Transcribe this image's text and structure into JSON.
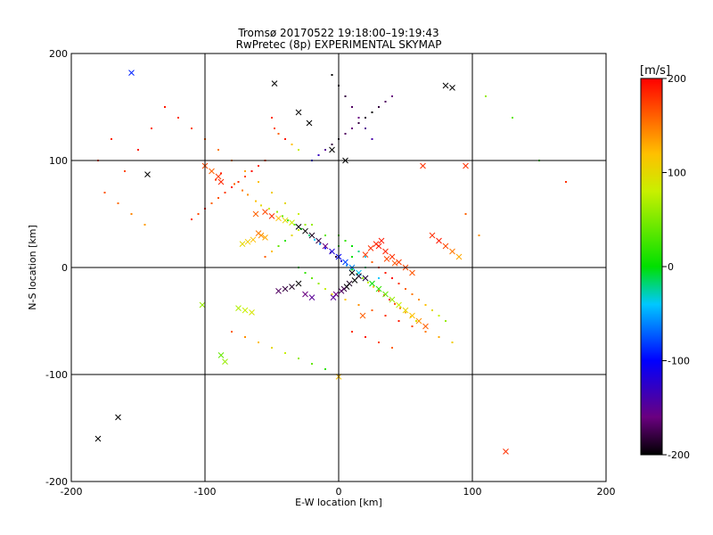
{
  "chart_data": {
    "type": "scatter",
    "title": "Tromsø 20170522 19:18:00–19:19:43",
    "subtitle": "RwPretec (8p) EXPERIMENTAL SKYMAP",
    "xlabel": "E-W location [km]",
    "ylabel": "N-S location [km]",
    "xlim": [
      -200,
      200
    ],
    "ylim": [
      -200,
      200
    ],
    "x_ticks": [
      "-200",
      "-100",
      "0",
      "100",
      "200"
    ],
    "y_ticks": [
      "-200",
      "-100",
      "0",
      "100",
      "200"
    ],
    "grid": true,
    "colorbar": {
      "label": "[m/s]",
      "range": [
        -200,
        200
      ],
      "ticks": [
        "-200",
        "-100",
        "0",
        "100",
        "200"
      ],
      "colormap": "rainbow (black-purple-blue-cyan-green-yellow-orange-red)"
    },
    "series": [
      {
        "marker": "dot",
        "x": [
          -50,
          -48,
          -45,
          -40,
          -35,
          -30,
          -55,
          -60,
          -65,
          -70,
          -75,
          -80,
          -85,
          -90,
          -95,
          -100,
          -105,
          -110,
          -88,
          -92,
          -78,
          -72,
          -68,
          -62,
          -58,
          -52,
          -46,
          -42,
          -38,
          -33,
          -28,
          -22,
          -18,
          -14,
          -10,
          -6,
          -2,
          2,
          6,
          10,
          14,
          18,
          22,
          26,
          30,
          34,
          38,
          42,
          46,
          50,
          54,
          58,
          -20,
          -15,
          -10,
          -5,
          0,
          5,
          10,
          15,
          20,
          25,
          30,
          35,
          40,
          -25,
          -30,
          -35,
          -40,
          -45,
          -50,
          -55,
          0,
          5,
          10,
          15,
          20,
          25,
          30,
          35,
          40,
          45,
          50,
          55,
          60,
          65,
          70,
          75,
          80,
          -130,
          -120,
          -110,
          -100,
          -90,
          -80,
          -70,
          -60,
          -50,
          -40,
          -30,
          -20,
          -10,
          0,
          10,
          20,
          30,
          -80,
          -70,
          -60,
          -50,
          -40,
          -30,
          -20,
          -10,
          10,
          20,
          30,
          40,
          -5,
          0,
          5,
          10,
          15,
          20,
          25,
          -30,
          -25,
          -20,
          -15,
          -10,
          -5,
          5,
          15,
          25,
          35,
          45,
          55,
          65,
          75,
          85,
          -140,
          -150,
          -160,
          -170,
          -180,
          -175,
          -165,
          -155,
          -145,
          110,
          130,
          150,
          170,
          95,
          105
        ],
        "y": [
          140,
          130,
          125,
          120,
          115,
          110,
          100,
          95,
          90,
          85,
          80,
          75,
          70,
          65,
          60,
          55,
          50,
          45,
          88,
          82,
          78,
          72,
          68,
          62,
          58,
          55,
          52,
          48,
          44,
          40,
          36,
          30,
          26,
          22,
          18,
          14,
          10,
          6,
          2,
          -2,
          -6,
          -10,
          -14,
          -18,
          -22,
          -26,
          -30,
          -34,
          -38,
          -42,
          -46,
          -50,
          100,
          105,
          110,
          115,
          120,
          125,
          130,
          135,
          140,
          145,
          150,
          155,
          160,
          40,
          35,
          30,
          25,
          20,
          15,
          10,
          30,
          25,
          20,
          15,
          10,
          5,
          0,
          -5,
          -10,
          -15,
          -20,
          -25,
          -30,
          -35,
          -40,
          -45,
          -50,
          150,
          140,
          130,
          120,
          110,
          100,
          90,
          80,
          70,
          60,
          50,
          40,
          30,
          20,
          10,
          0,
          -10,
          -60,
          -65,
          -70,
          -75,
          -80,
          -85,
          -90,
          -95,
          -60,
          -65,
          -70,
          -75,
          180,
          170,
          160,
          150,
          140,
          130,
          120,
          0,
          -5,
          -10,
          -15,
          -20,
          -25,
          -30,
          -35,
          -40,
          -45,
          -50,
          -55,
          -60,
          -65,
          -70,
          130,
          110,
          90,
          120,
          100,
          70,
          60,
          50,
          40,
          160,
          140,
          100,
          80,
          50,
          30
        ],
        "v": [
          180,
          170,
          160,
          190,
          120,
          80,
          175,
          185,
          195,
          170,
          180,
          190,
          175,
          165,
          160,
          185,
          170,
          180,
          190,
          175,
          160,
          150,
          140,
          120,
          100,
          80,
          60,
          40,
          20,
          10,
          0,
          -20,
          -40,
          -60,
          -100,
          -150,
          -180,
          -120,
          -60,
          0,
          40,
          60,
          80,
          120,
          160,
          180,
          190,
          170,
          150,
          130,
          110,
          90,
          -100,
          -130,
          -150,
          -180,
          -190,
          -170,
          -160,
          -180,
          -190,
          -200,
          -180,
          -170,
          -160,
          60,
          80,
          100,
          20,
          40,
          120,
          160,
          40,
          20,
          0,
          -20,
          -40,
          160,
          180,
          190,
          200,
          180,
          160,
          150,
          140,
          120,
          100,
          80,
          60,
          190,
          180,
          170,
          160,
          150,
          140,
          130,
          120,
          110,
          100,
          80,
          60,
          40,
          20,
          0,
          -20,
          -40,
          160,
          140,
          120,
          100,
          80,
          60,
          40,
          20,
          180,
          190,
          170,
          160,
          -200,
          -190,
          -180,
          -170,
          -160,
          -150,
          -140,
          0,
          20,
          40,
          60,
          80,
          100,
          120,
          140,
          160,
          180,
          190,
          170,
          150,
          130,
          110,
          180,
          190,
          170,
          185,
          175,
          165,
          155,
          145,
          135,
          60,
          40,
          20,
          180,
          160,
          140
        ]
      },
      {
        "marker": "cross",
        "x": [
          -155,
          -143,
          -48,
          -30,
          -22,
          -5,
          5,
          80,
          85,
          63,
          95,
          -100,
          -95,
          -90,
          -88,
          -102,
          -75,
          -70,
          -65,
          -62,
          -55,
          -50,
          -45,
          -40,
          -35,
          -30,
          -25,
          -20,
          -15,
          -10,
          -5,
          0,
          5,
          10,
          15,
          20,
          25,
          30,
          35,
          40,
          45,
          50,
          55,
          60,
          65,
          70,
          75,
          80,
          85,
          90,
          10,
          15,
          20,
          12,
          8,
          6,
          4,
          2,
          -2,
          -4,
          -30,
          -35,
          -40,
          -45,
          -25,
          -20,
          30,
          35,
          40,
          45,
          50,
          55,
          32,
          28,
          24,
          20,
          36,
          42,
          -165,
          -180,
          125,
          0,
          -88,
          -85,
          18,
          -60,
          -58,
          -55,
          -64,
          -68,
          -72
        ],
        "y": [
          182,
          87,
          172,
          145,
          135,
          110,
          100,
          170,
          168,
          95,
          95,
          95,
          90,
          85,
          80,
          -35,
          -38,
          -40,
          -42,
          50,
          52,
          48,
          46,
          44,
          42,
          38,
          34,
          30,
          25,
          20,
          15,
          10,
          5,
          0,
          -5,
          -10,
          -15,
          -20,
          -25,
          -30,
          -35,
          -40,
          -45,
          -50,
          -55,
          30,
          25,
          20,
          15,
          10,
          -5,
          -8,
          -10,
          -12,
          -15,
          -18,
          -20,
          -22,
          -25,
          -28,
          -15,
          -18,
          -20,
          -22,
          -25,
          -28,
          20,
          15,
          10,
          5,
          0,
          -5,
          25,
          22,
          18,
          12,
          8,
          4,
          -140,
          -160,
          -172,
          -102,
          -82,
          -88,
          -45,
          32,
          30,
          28,
          26,
          24,
          22
        ],
        "v": [
          -90,
          -200,
          -200,
          -200,
          -200,
          -200,
          -200,
          -200,
          -200,
          180,
          180,
          170,
          160,
          175,
          185,
          60,
          70,
          80,
          90,
          160,
          170,
          180,
          120,
          100,
          80,
          -200,
          -200,
          -190,
          -180,
          -160,
          -120,
          -100,
          -80,
          -60,
          -40,
          -20,
          0,
          20,
          40,
          60,
          80,
          100,
          120,
          140,
          160,
          180,
          190,
          170,
          150,
          130,
          -200,
          -190,
          -180,
          -200,
          -190,
          -200,
          -180,
          -170,
          -160,
          -150,
          -200,
          -190,
          -180,
          -170,
          -160,
          -150,
          190,
          185,
          180,
          175,
          170,
          165,
          190,
          185,
          180,
          175,
          170,
          165,
          -200,
          -200,
          180,
          120,
          40,
          60,
          160,
          150,
          140,
          130,
          120,
          110,
          100
        ]
      }
    ]
  }
}
